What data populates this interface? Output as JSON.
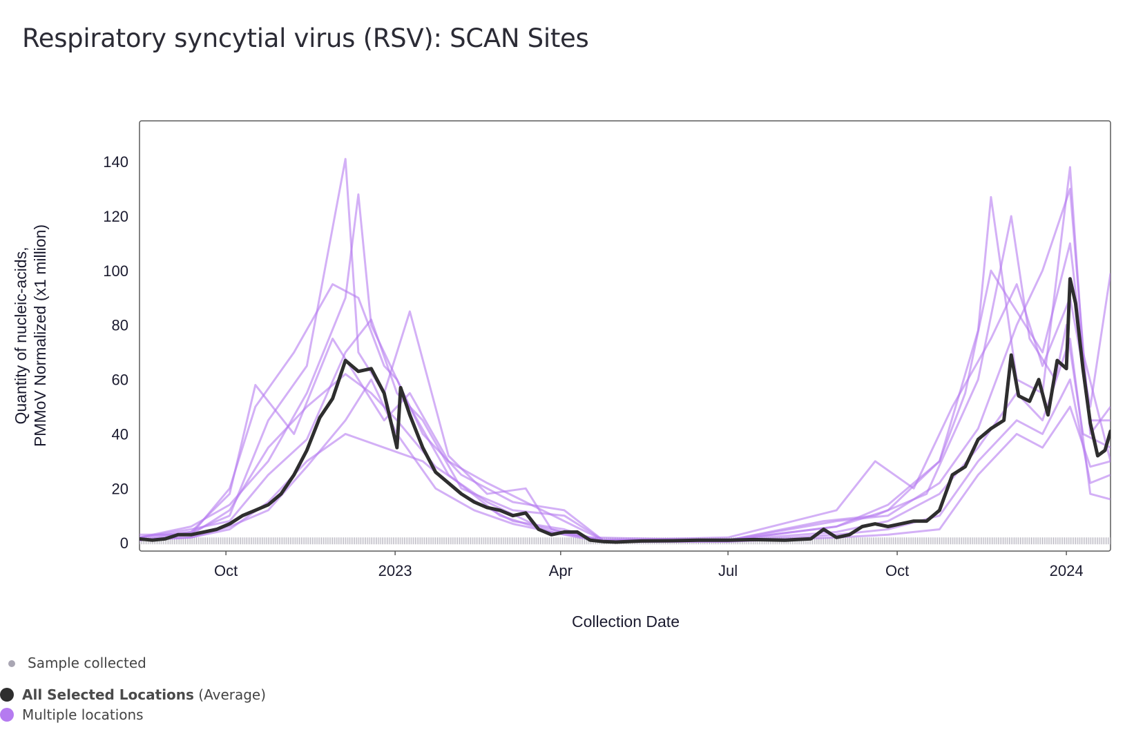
{
  "title": "Respiratory syncytial virus (RSV): SCAN Sites",
  "legend": {
    "sample": "Sample collected",
    "avg_bold": "All Selected Locations",
    "avg_suffix": " (Average)",
    "multi": "Multiple locations"
  },
  "colors": {
    "average": "#2e2e2e",
    "locations": "#b57bf0",
    "sample_dot": "#a9a6b3",
    "frame": "#5a5a5a"
  },
  "chart_data": {
    "type": "line",
    "title": "Respiratory syncytial virus (RSV): SCAN Sites",
    "xlabel": "Collection Date",
    "ylabel_lines": [
      "Quantity of nucleic-acids,",
      "PMMoV Normalized (x1 million)"
    ],
    "x_start": "2022-08-15",
    "x_end": "2024-01-25",
    "ylim": [
      -3,
      155
    ],
    "yticks": [
      0,
      20,
      40,
      60,
      80,
      100,
      120,
      140
    ],
    "xticks": [
      {
        "date": "2022-10-01",
        "label": "Oct"
      },
      {
        "date": "2023-01-01",
        "label": "2023"
      },
      {
        "date": "2023-04-01",
        "label": "Apr"
      },
      {
        "date": "2023-07-01",
        "label": "Jul"
      },
      {
        "date": "2023-10-01",
        "label": "Oct"
      },
      {
        "date": "2024-01-01",
        "label": "2024"
      }
    ],
    "average": {
      "name": "All Selected Locations (Average)",
      "points": [
        [
          "2022-08-15",
          1.5
        ],
        [
          "2022-08-22",
          1
        ],
        [
          "2022-08-29",
          1.5
        ],
        [
          "2022-09-05",
          3
        ],
        [
          "2022-09-12",
          3
        ],
        [
          "2022-09-19",
          4
        ],
        [
          "2022-09-26",
          5
        ],
        [
          "2022-10-03",
          7
        ],
        [
          "2022-10-10",
          10
        ],
        [
          "2022-10-17",
          12
        ],
        [
          "2022-10-24",
          14
        ],
        [
          "2022-10-31",
          18
        ],
        [
          "2022-11-07",
          25
        ],
        [
          "2022-11-14",
          34
        ],
        [
          "2022-11-21",
          46
        ],
        [
          "2022-11-28",
          53
        ],
        [
          "2022-12-05",
          67
        ],
        [
          "2022-12-12",
          63
        ],
        [
          "2022-12-19",
          64
        ],
        [
          "2022-12-26",
          55
        ],
        [
          "2023-01-02",
          35
        ],
        [
          "2023-01-04",
          57
        ],
        [
          "2023-01-09",
          47
        ],
        [
          "2023-01-16",
          35
        ],
        [
          "2023-01-23",
          26
        ],
        [
          "2023-01-30",
          22
        ],
        [
          "2023-02-06",
          18
        ],
        [
          "2023-02-13",
          15
        ],
        [
          "2023-02-20",
          13
        ],
        [
          "2023-02-27",
          12
        ],
        [
          "2023-03-06",
          10
        ],
        [
          "2023-03-13",
          11
        ],
        [
          "2023-03-20",
          5
        ],
        [
          "2023-03-27",
          3
        ],
        [
          "2023-04-03",
          4
        ],
        [
          "2023-04-10",
          4
        ],
        [
          "2023-04-17",
          1
        ],
        [
          "2023-04-24",
          0.5
        ],
        [
          "2023-05-01",
          0.3
        ],
        [
          "2023-05-15",
          0.7
        ],
        [
          "2023-06-01",
          0.8
        ],
        [
          "2023-06-15",
          1
        ],
        [
          "2023-07-01",
          1
        ],
        [
          "2023-07-15",
          1.2
        ],
        [
          "2023-08-01",
          1
        ],
        [
          "2023-08-15",
          1.5
        ],
        [
          "2023-08-22",
          5
        ],
        [
          "2023-08-29",
          2
        ],
        [
          "2023-09-05",
          3
        ],
        [
          "2023-09-12",
          6
        ],
        [
          "2023-09-19",
          7
        ],
        [
          "2023-09-26",
          6
        ],
        [
          "2023-10-03",
          7
        ],
        [
          "2023-10-10",
          8
        ],
        [
          "2023-10-17",
          8
        ],
        [
          "2023-10-24",
          12
        ],
        [
          "2023-10-31",
          25
        ],
        [
          "2023-11-07",
          28
        ],
        [
          "2023-11-14",
          38
        ],
        [
          "2023-11-21",
          42
        ],
        [
          "2023-11-28",
          45
        ],
        [
          "2023-12-02",
          69
        ],
        [
          "2023-12-06",
          54
        ],
        [
          "2023-12-12",
          52
        ],
        [
          "2023-12-17",
          60
        ],
        [
          "2023-12-22",
          47
        ],
        [
          "2023-12-27",
          67
        ],
        [
          "2024-01-01",
          64
        ],
        [
          "2024-01-03",
          97
        ],
        [
          "2024-01-06",
          88
        ],
        [
          "2024-01-10",
          64
        ],
        [
          "2024-01-14",
          44
        ],
        [
          "2024-01-18",
          32
        ],
        [
          "2024-01-22",
          34
        ],
        [
          "2024-01-25",
          41
        ]
      ]
    },
    "locations": {
      "name": "Multiple locations",
      "series": [
        [
          [
            "2022-08-15",
            2
          ],
          [
            "2022-09-12",
            6
          ],
          [
            "2022-10-03",
            14
          ],
          [
            "2022-10-24",
            30
          ],
          [
            "2022-11-14",
            55
          ],
          [
            "2022-12-05",
            90
          ],
          [
            "2022-12-12",
            128
          ],
          [
            "2022-12-19",
            80
          ],
          [
            "2022-12-26",
            70
          ],
          [
            "2023-01-09",
            50
          ],
          [
            "2023-01-30",
            25
          ],
          [
            "2023-02-27",
            10
          ],
          [
            "2023-03-27",
            4
          ],
          [
            "2023-04-24",
            1
          ],
          [
            "2023-07-01",
            1
          ],
          [
            "2023-08-29",
            6
          ],
          [
            "2023-09-26",
            14
          ],
          [
            "2023-10-24",
            30
          ],
          [
            "2023-11-14",
            78
          ],
          [
            "2023-11-21",
            127
          ],
          [
            "2023-12-05",
            60
          ],
          [
            "2023-12-19",
            55
          ],
          [
            "2024-01-03",
            138
          ],
          [
            "2024-01-10",
            70
          ],
          [
            "2024-01-25",
            30
          ]
        ],
        [
          [
            "2022-08-15",
            1
          ],
          [
            "2022-09-12",
            4
          ],
          [
            "2022-10-03",
            10
          ],
          [
            "2022-10-24",
            45
          ],
          [
            "2022-11-14",
            65
          ],
          [
            "2022-12-05",
            141
          ],
          [
            "2022-12-12",
            70
          ],
          [
            "2022-12-26",
            55
          ],
          [
            "2023-01-09",
            85
          ],
          [
            "2023-01-30",
            32
          ],
          [
            "2023-02-20",
            18
          ],
          [
            "2023-03-13",
            20
          ],
          [
            "2023-03-27",
            5
          ],
          [
            "2023-04-24",
            0.5
          ],
          [
            "2023-07-01",
            1
          ],
          [
            "2023-08-22",
            8
          ],
          [
            "2023-09-19",
            10
          ],
          [
            "2023-10-17",
            18
          ],
          [
            "2023-11-14",
            60
          ],
          [
            "2023-12-02",
            120
          ],
          [
            "2023-12-12",
            75
          ],
          [
            "2023-12-26",
            60
          ],
          [
            "2024-01-01",
            80
          ],
          [
            "2024-01-10",
            40
          ],
          [
            "2024-01-25",
            35
          ]
        ],
        [
          [
            "2022-08-15",
            3
          ],
          [
            "2022-09-12",
            3
          ],
          [
            "2022-10-03",
            20
          ],
          [
            "2022-10-17",
            50
          ],
          [
            "2022-11-07",
            70
          ],
          [
            "2022-11-28",
            95
          ],
          [
            "2022-12-12",
            90
          ],
          [
            "2022-12-26",
            65
          ],
          [
            "2023-01-02",
            60
          ],
          [
            "2023-01-16",
            40
          ],
          [
            "2023-02-06",
            25
          ],
          [
            "2023-03-06",
            15
          ],
          [
            "2023-04-03",
            12
          ],
          [
            "2023-04-24",
            1
          ],
          [
            "2023-07-01",
            2
          ],
          [
            "2023-08-29",
            12
          ],
          [
            "2023-09-19",
            30
          ],
          [
            "2023-10-10",
            20
          ],
          [
            "2023-10-31",
            50
          ],
          [
            "2023-11-21",
            75
          ],
          [
            "2023-12-05",
            95
          ],
          [
            "2023-12-19",
            65
          ],
          [
            "2024-01-03",
            90
          ],
          [
            "2024-01-14",
            50
          ],
          [
            "2024-01-25",
            99
          ]
        ],
        [
          [
            "2022-08-15",
            1
          ],
          [
            "2022-09-12",
            2
          ],
          [
            "2022-10-03",
            6
          ],
          [
            "2022-10-24",
            12
          ],
          [
            "2022-11-14",
            28
          ],
          [
            "2022-12-05",
            45
          ],
          [
            "2022-12-19",
            60
          ],
          [
            "2023-01-02",
            40
          ],
          [
            "2023-01-23",
            20
          ],
          [
            "2023-02-13",
            12
          ],
          [
            "2023-03-06",
            7
          ],
          [
            "2023-04-03",
            3
          ],
          [
            "2023-04-24",
            0.3
          ],
          [
            "2023-07-01",
            0.5
          ],
          [
            "2023-08-29",
            3
          ],
          [
            "2023-09-26",
            5
          ],
          [
            "2023-10-24",
            10
          ],
          [
            "2023-11-14",
            30
          ],
          [
            "2023-12-05",
            45
          ],
          [
            "2023-12-19",
            40
          ],
          [
            "2024-01-03",
            60
          ],
          [
            "2024-01-14",
            22
          ],
          [
            "2024-01-25",
            25
          ]
        ],
        [
          [
            "2022-08-15",
            2
          ],
          [
            "2022-09-12",
            5
          ],
          [
            "2022-10-03",
            8
          ],
          [
            "2022-10-24",
            25
          ],
          [
            "2022-11-14",
            38
          ],
          [
            "2022-12-05",
            70
          ],
          [
            "2022-12-19",
            82
          ],
          [
            "2023-01-02",
            55
          ],
          [
            "2023-01-16",
            45
          ],
          [
            "2023-02-06",
            20
          ],
          [
            "2023-03-06",
            12
          ],
          [
            "2023-04-03",
            10
          ],
          [
            "2023-04-24",
            1
          ],
          [
            "2023-07-01",
            1
          ],
          [
            "2023-08-29",
            8
          ],
          [
            "2023-09-26",
            10
          ],
          [
            "2023-10-24",
            22
          ],
          [
            "2023-11-14",
            42
          ],
          [
            "2023-12-05",
            80
          ],
          [
            "2023-12-19",
            100
          ],
          [
            "2024-01-03",
            130
          ],
          [
            "2024-01-14",
            40
          ],
          [
            "2024-01-25",
            50
          ]
        ],
        [
          [
            "2022-08-15",
            1
          ],
          [
            "2022-09-12",
            3
          ],
          [
            "2022-10-03",
            12
          ],
          [
            "2022-10-24",
            35
          ],
          [
            "2022-11-14",
            50
          ],
          [
            "2022-12-05",
            62
          ],
          [
            "2022-12-19",
            55
          ],
          [
            "2023-01-02",
            45
          ],
          [
            "2023-01-23",
            28
          ],
          [
            "2023-02-20",
            15
          ],
          [
            "2023-03-20",
            6
          ],
          [
            "2023-04-17",
            2
          ],
          [
            "2023-07-01",
            1
          ],
          [
            "2023-08-29",
            4
          ],
          [
            "2023-09-26",
            8
          ],
          [
            "2023-10-24",
            18
          ],
          [
            "2023-11-14",
            35
          ],
          [
            "2023-12-05",
            55
          ],
          [
            "2023-12-19",
            45
          ],
          [
            "2024-01-03",
            75
          ],
          [
            "2024-01-14",
            18
          ],
          [
            "2024-01-25",
            16
          ]
        ],
        [
          [
            "2022-08-15",
            1
          ],
          [
            "2022-09-12",
            2
          ],
          [
            "2022-10-03",
            5
          ],
          [
            "2022-10-24",
            15
          ],
          [
            "2022-11-14",
            30
          ],
          [
            "2022-12-05",
            40
          ],
          [
            "2022-12-26",
            35
          ],
          [
            "2023-01-16",
            30
          ],
          [
            "2023-02-06",
            18
          ],
          [
            "2023-03-06",
            8
          ],
          [
            "2023-04-03",
            5
          ],
          [
            "2023-04-24",
            0.5
          ],
          [
            "2023-07-01",
            0.5
          ],
          [
            "2023-08-29",
            2
          ],
          [
            "2023-09-26",
            3
          ],
          [
            "2023-10-24",
            5
          ],
          [
            "2023-11-14",
            25
          ],
          [
            "2023-12-05",
            40
          ],
          [
            "2023-12-19",
            35
          ],
          [
            "2024-01-03",
            50
          ],
          [
            "2024-01-14",
            28
          ],
          [
            "2024-01-25",
            30
          ]
        ],
        [
          [
            "2022-08-15",
            2
          ],
          [
            "2022-09-12",
            4
          ],
          [
            "2022-10-03",
            18
          ],
          [
            "2022-10-17",
            58
          ],
          [
            "2022-11-07",
            40
          ],
          [
            "2022-11-28",
            75
          ],
          [
            "2022-12-12",
            60
          ],
          [
            "2022-12-26",
            45
          ],
          [
            "2023-01-09",
            55
          ],
          [
            "2023-01-30",
            30
          ],
          [
            "2023-02-20",
            22
          ],
          [
            "2023-03-13",
            15
          ],
          [
            "2023-04-03",
            8
          ],
          [
            "2023-04-24",
            1
          ],
          [
            "2023-07-01",
            1
          ],
          [
            "2023-08-29",
            6
          ],
          [
            "2023-09-26",
            12
          ],
          [
            "2023-10-24",
            30
          ],
          [
            "2023-11-07",
            55
          ],
          [
            "2023-11-21",
            100
          ],
          [
            "2023-12-05",
            85
          ],
          [
            "2023-12-19",
            70
          ],
          [
            "2024-01-03",
            110
          ],
          [
            "2024-01-14",
            45
          ],
          [
            "2024-01-25",
            45
          ]
        ]
      ]
    },
    "sample_markers": {
      "start": "2022-08-15",
      "end": "2024-01-25",
      "interval_days": 1,
      "value": 1
    }
  }
}
